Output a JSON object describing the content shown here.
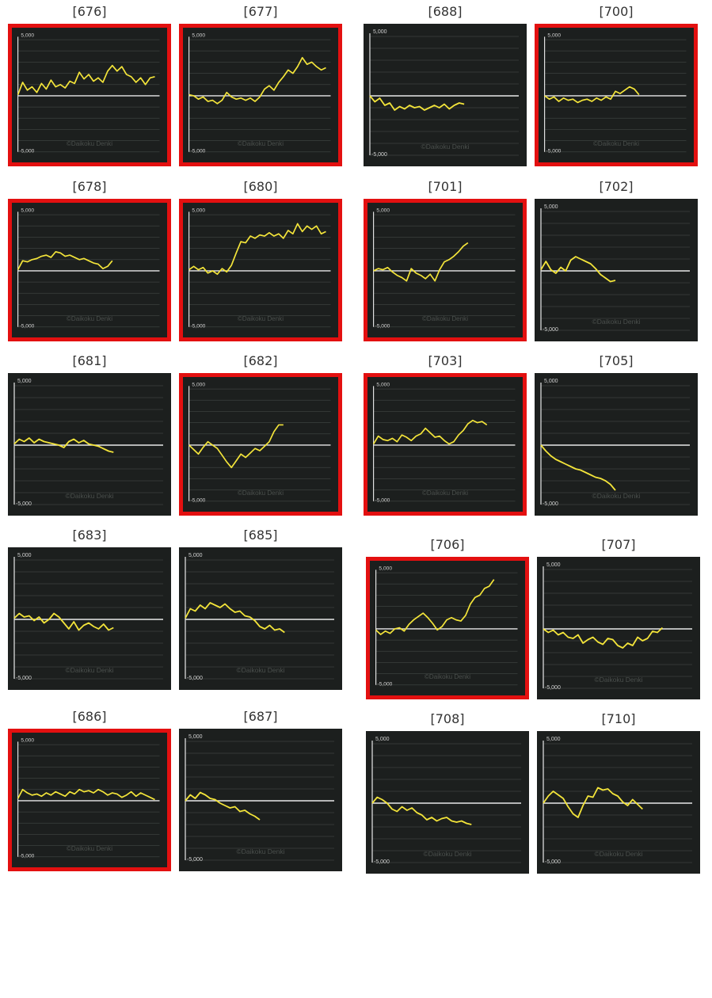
{
  "colors": {
    "highlight": "#e31010",
    "panel_bg": "#1c1f1e",
    "line": "#f3e43a",
    "zero_line": "#e8e8e8",
    "grid": "#3b413e"
  },
  "axis": {
    "top_label": "5,000",
    "bottom_label": "-5,000",
    "watermark": "©Daikoku Denki"
  },
  "chart_data": [
    {
      "type": "line",
      "machine": "[676]",
      "highlighted": true,
      "ylim": [
        -5000,
        5000
      ],
      "x": [
        0,
        10,
        20,
        30,
        40,
        50,
        60,
        70,
        80,
        90,
        100,
        110,
        120,
        130,
        140,
        150,
        160,
        170,
        180,
        190,
        200,
        210,
        220,
        230,
        240,
        250,
        260,
        270,
        280,
        290
      ],
      "values": [
        100,
        1200,
        500,
        800,
        300,
        1100,
        600,
        1400,
        800,
        1000,
        700,
        1300,
        1100,
        2100,
        1500,
        1900,
        1300,
        1600,
        1200,
        2200,
        2700,
        2200,
        2600,
        1900,
        1700,
        1200,
        1600,
        1000,
        1600,
        1700
      ]
    },
    {
      "type": "line",
      "machine": "[677]",
      "highlighted": true,
      "ylim": [
        -5000,
        5000
      ],
      "x": [
        0,
        10,
        20,
        30,
        40,
        50,
        60,
        70,
        80,
        90,
        100,
        110,
        120,
        130,
        140,
        150,
        160,
        170,
        180,
        190,
        200,
        210,
        220,
        230,
        240,
        250,
        260,
        270,
        280,
        290
      ],
      "values": [
        100,
        0,
        -300,
        -100,
        -500,
        -400,
        -700,
        -400,
        300,
        -100,
        -300,
        -200,
        -400,
        -200,
        -500,
        -100,
        600,
        900,
        500,
        1200,
        1700,
        2300,
        2000,
        2600,
        3400,
        2800,
        3000,
        2600,
        2300,
        2500
      ]
    },
    {
      "type": "line",
      "machine": "[688]",
      "highlighted": false,
      "ylim": [
        -5000,
        5000
      ],
      "x": [
        0,
        10,
        20,
        30,
        40,
        50,
        60,
        70,
        80,
        90,
        100,
        110,
        120,
        130,
        140,
        150,
        160,
        170,
        180,
        190
      ],
      "values": [
        0,
        -500,
        -200,
        -800,
        -600,
        -1200,
        -900,
        -1100,
        -800,
        -1000,
        -900,
        -1200,
        -1000,
        -800,
        -1000,
        -700,
        -1100,
        -800,
        -600,
        -700
      ]
    },
    {
      "type": "line",
      "machine": "[700]",
      "highlighted": true,
      "ylim": [
        -5000,
        5000
      ],
      "x": [
        0,
        10,
        20,
        30,
        40,
        50,
        60,
        70,
        80,
        90,
        100,
        110,
        120,
        130,
        140,
        150,
        160,
        170,
        180,
        190,
        200
      ],
      "values": [
        0,
        -300,
        -100,
        -500,
        -200,
        -400,
        -300,
        -600,
        -400,
        -300,
        -500,
        -200,
        -400,
        -100,
        -300,
        400,
        200,
        500,
        800,
        600,
        100
      ]
    },
    {
      "type": "line",
      "machine": "[678]",
      "highlighted": true,
      "ylim": [
        -5000,
        5000
      ],
      "x": [
        0,
        10,
        20,
        30,
        40,
        50,
        60,
        70,
        80,
        90,
        100,
        110,
        120,
        130,
        140,
        150,
        160,
        170,
        180,
        190,
        200
      ],
      "values": [
        100,
        900,
        800,
        1000,
        1100,
        1300,
        1400,
        1200,
        1700,
        1600,
        1300,
        1400,
        1200,
        1000,
        1100,
        900,
        700,
        600,
        200,
        400,
        900
      ]
    },
    {
      "type": "line",
      "machine": "[680]",
      "highlighted": true,
      "ylim": [
        -5000,
        5000
      ],
      "x": [
        0,
        10,
        20,
        30,
        40,
        50,
        60,
        70,
        80,
        90,
        100,
        110,
        120,
        130,
        140,
        150,
        160,
        170,
        180,
        190,
        200,
        210,
        220,
        230,
        240,
        250,
        260,
        270,
        280,
        290
      ],
      "values": [
        100,
        400,
        100,
        300,
        -200,
        0,
        -300,
        200,
        -100,
        500,
        1600,
        2600,
        2500,
        3100,
        2900,
        3200,
        3100,
        3400,
        3100,
        3300,
        2900,
        3600,
        3300,
        4200,
        3500,
        4000,
        3700,
        4000,
        3300,
        3500
      ]
    },
    {
      "type": "line",
      "machine": "[701]",
      "highlighted": true,
      "ylim": [
        -5000,
        5000
      ],
      "x": [
        0,
        10,
        20,
        30,
        40,
        50,
        60,
        70,
        80,
        90,
        100,
        110,
        120,
        130,
        140,
        150,
        160,
        170,
        180,
        190,
        200
      ],
      "values": [
        0,
        200,
        100,
        300,
        -100,
        -400,
        -600,
        -900,
        200,
        -200,
        -400,
        -700,
        -300,
        -900,
        100,
        800,
        1000,
        1300,
        1700,
        2200,
        2500
      ]
    },
    {
      "type": "line",
      "machine": "[702]",
      "highlighted": false,
      "ylim": [
        -5000,
        5000
      ],
      "x": [
        0,
        10,
        20,
        30,
        40,
        50,
        60,
        70,
        80,
        90,
        100,
        110,
        120,
        130,
        140,
        150
      ],
      "values": [
        100,
        800,
        100,
        -200,
        300,
        0,
        900,
        1200,
        1000,
        800,
        600,
        200,
        -300,
        -600,
        -900,
        -800
      ]
    },
    {
      "type": "line",
      "machine": "[681]",
      "highlighted": false,
      "ylim": [
        -5000,
        5000
      ],
      "x": [
        0,
        10,
        20,
        30,
        40,
        50,
        60,
        70,
        80,
        90,
        100,
        110,
        120,
        130,
        140,
        150,
        160,
        170,
        180,
        190,
        200
      ],
      "values": [
        100,
        500,
        300,
        600,
        200,
        500,
        300,
        200,
        100,
        0,
        -200,
        300,
        500,
        200,
        400,
        100,
        0,
        -100,
        -300,
        -500,
        -600
      ]
    },
    {
      "type": "line",
      "machine": "[682]",
      "highlighted": true,
      "ylim": [
        -5000,
        5000
      ],
      "x": [
        0,
        10,
        20,
        30,
        40,
        50,
        60,
        70,
        80,
        90,
        100,
        110,
        120,
        130,
        140,
        150,
        160,
        170,
        180,
        190,
        200
      ],
      "values": [
        0,
        -400,
        -800,
        -200,
        300,
        0,
        -300,
        -900,
        -1500,
        -2000,
        -1400,
        -800,
        -1100,
        -700,
        -300,
        -500,
        -100,
        300,
        1200,
        1800,
        1800
      ]
    },
    {
      "type": "line",
      "machine": "[703]",
      "highlighted": true,
      "ylim": [
        -5000,
        5000
      ],
      "x": [
        0,
        10,
        20,
        30,
        40,
        50,
        60,
        70,
        80,
        90,
        100,
        110,
        120,
        130,
        140,
        150,
        160,
        170,
        180,
        190,
        200,
        210,
        220,
        230,
        240
      ],
      "values": [
        100,
        800,
        500,
        400,
        600,
        300,
        900,
        700,
        400,
        800,
        1000,
        1500,
        1100,
        700,
        800,
        400,
        100,
        300,
        900,
        1300,
        1900,
        2200,
        2000,
        2100,
        1800
      ]
    },
    {
      "type": "line",
      "machine": "[705]",
      "highlighted": false,
      "ylim": [
        -5000,
        5000
      ],
      "x": [
        0,
        10,
        20,
        30,
        40,
        50,
        60,
        70,
        80,
        90,
        100,
        110,
        120,
        130,
        140,
        150
      ],
      "values": [
        0,
        -500,
        -900,
        -1200,
        -1400,
        -1600,
        -1800,
        -2000,
        -2100,
        -2300,
        -2500,
        -2700,
        -2800,
        -3000,
        -3300,
        -3800
      ]
    },
    {
      "type": "line",
      "machine": "[683]",
      "highlighted": false,
      "ylim": [
        -5000,
        5000
      ],
      "x": [
        0,
        10,
        20,
        30,
        40,
        50,
        60,
        70,
        80,
        90,
        100,
        110,
        120,
        130,
        140,
        150,
        160,
        170,
        180,
        190,
        200
      ],
      "values": [
        100,
        500,
        200,
        300,
        -100,
        200,
        -300,
        0,
        500,
        200,
        -300,
        -800,
        -200,
        -900,
        -500,
        -300,
        -600,
        -800,
        -400,
        -900,
        -700
      ]
    },
    {
      "type": "line",
      "machine": "[685]",
      "highlighted": false,
      "ylim": [
        -5000,
        5000
      ],
      "x": [
        0,
        10,
        20,
        30,
        40,
        50,
        60,
        70,
        80,
        90,
        100,
        110,
        120,
        130,
        140,
        150,
        160,
        170,
        180,
        190,
        200
      ],
      "values": [
        100,
        900,
        700,
        1200,
        900,
        1400,
        1200,
        1000,
        1300,
        900,
        600,
        700,
        300,
        200,
        -100,
        -600,
        -800,
        -500,
        -900,
        -800,
        -1100
      ]
    },
    {
      "type": "line",
      "machine": "[706]",
      "highlighted": true,
      "ylim": [
        -5000,
        5000
      ],
      "x": [
        0,
        10,
        20,
        30,
        40,
        50,
        60,
        70,
        80,
        90,
        100,
        110,
        120,
        130,
        140,
        150,
        160,
        170,
        180,
        190,
        200,
        210,
        220,
        230,
        240,
        250
      ],
      "values": [
        -100,
        -500,
        -200,
        -400,
        0,
        100,
        -200,
        400,
        800,
        1100,
        1400,
        1000,
        500,
        -100,
        200,
        800,
        1000,
        800,
        700,
        1200,
        2200,
        2800,
        3000,
        3600,
        3800,
        4400
      ]
    },
    {
      "type": "line",
      "machine": "[707]",
      "highlighted": false,
      "ylim": [
        -5000,
        5000
      ],
      "x": [
        0,
        10,
        20,
        30,
        40,
        50,
        60,
        70,
        80,
        90,
        100,
        110,
        120,
        130,
        140,
        150,
        160,
        170,
        180,
        190,
        200,
        210,
        220,
        230,
        240
      ],
      "values": [
        0,
        -300,
        -100,
        -500,
        -300,
        -700,
        -800,
        -500,
        -1200,
        -900,
        -700,
        -1100,
        -1300,
        -800,
        -900,
        -1400,
        -1600,
        -1200,
        -1400,
        -700,
        -1000,
        -800,
        -200,
        -300,
        100
      ]
    },
    {
      "type": "line",
      "machine": "[686]",
      "highlighted": true,
      "ylim": [
        -5000,
        5000
      ],
      "x": [
        0,
        10,
        20,
        30,
        40,
        50,
        60,
        70,
        80,
        90,
        100,
        110,
        120,
        130,
        140,
        150,
        160,
        170,
        180,
        190,
        200,
        210,
        220,
        230,
        240,
        250,
        260,
        270,
        280,
        290
      ],
      "values": [
        200,
        1000,
        700,
        500,
        600,
        400,
        700,
        500,
        800,
        600,
        400,
        800,
        600,
        1000,
        800,
        900,
        700,
        1000,
        800,
        500,
        700,
        600,
        300,
        500,
        800,
        400,
        700,
        500,
        300,
        100
      ]
    },
    {
      "type": "line",
      "machine": "[687]",
      "highlighted": false,
      "ylim": [
        -5000,
        5000
      ],
      "x": [
        0,
        10,
        20,
        30,
        40,
        50,
        60,
        70,
        80,
        90,
        100,
        110,
        120,
        130,
        140,
        150
      ],
      "values": [
        0,
        500,
        200,
        700,
        500,
        200,
        100,
        -200,
        -400,
        -600,
        -500,
        -900,
        -800,
        -1100,
        -1300,
        -1600
      ]
    },
    {
      "type": "line",
      "machine": "[708]",
      "highlighted": false,
      "ylim": [
        -5000,
        5000
      ],
      "x": [
        0,
        10,
        20,
        30,
        40,
        50,
        60,
        70,
        80,
        90,
        100,
        110,
        120,
        130,
        140,
        150,
        160,
        170,
        180,
        190,
        200
      ],
      "values": [
        0,
        500,
        300,
        0,
        -500,
        -700,
        -300,
        -600,
        -400,
        -800,
        -1000,
        -1400,
        -1200,
        -1500,
        -1300,
        -1200,
        -1500,
        -1600,
        -1500,
        -1700,
        -1800
      ]
    },
    {
      "type": "line",
      "machine": "[710]",
      "highlighted": false,
      "ylim": [
        -5000,
        5000
      ],
      "x": [
        0,
        10,
        20,
        30,
        40,
        50,
        60,
        70,
        80,
        90,
        100,
        110,
        120,
        130,
        140,
        150,
        160,
        170,
        180,
        190,
        200
      ],
      "values": [
        0,
        600,
        1000,
        700,
        400,
        -300,
        -900,
        -1200,
        -200,
        600,
        500,
        1300,
        1100,
        1200,
        800,
        600,
        100,
        -200,
        300,
        -100,
        -500
      ]
    }
  ]
}
